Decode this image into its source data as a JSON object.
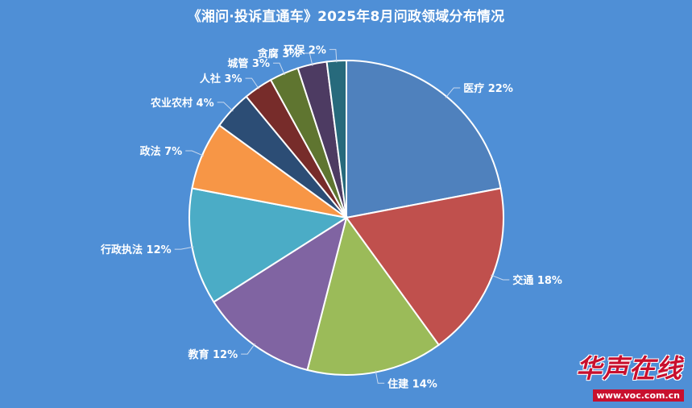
{
  "chart_data": {
    "type": "pie",
    "title": "《湘问·投诉直通车》2025年8月问政领域分布情况",
    "slices": [
      {
        "label": "医疗",
        "value": 22,
        "display": "医疗 22%",
        "color": "#4f81bd"
      },
      {
        "label": "交通",
        "value": 18,
        "display": "交通 18%",
        "color": "#c0504d"
      },
      {
        "label": "住建",
        "value": 14,
        "display": "住建 14%",
        "color": "#9bbb59"
      },
      {
        "label": "教育",
        "value": 12,
        "display": "教育 12%",
        "color": "#8064a2"
      },
      {
        "label": "行政执法",
        "value": 12,
        "display": "行政执法 12%",
        "color": "#4bacc6"
      },
      {
        "label": "政法",
        "value": 7,
        "display": "政法 7%",
        "color": "#f79646"
      },
      {
        "label": "农业农村",
        "value": 4,
        "display": "农业农村 4%",
        "color": "#2c4d75"
      },
      {
        "label": "人社",
        "value": 3,
        "display": "人社 3%",
        "color": "#772c2a"
      },
      {
        "label": "城管",
        "value": 3,
        "display": "城管 3%",
        "color": "#5f7530"
      },
      {
        "label": "贪腐",
        "value": 3,
        "display": "贪腐 3%",
        "color": "#4d3b62"
      },
      {
        "label": "环保",
        "value": 2,
        "display": "环保 2%",
        "color": "#276a7c"
      }
    ],
    "legend": "none"
  },
  "watermark": {
    "logo": "华声在线",
    "url": "www.voc.com.cn"
  }
}
